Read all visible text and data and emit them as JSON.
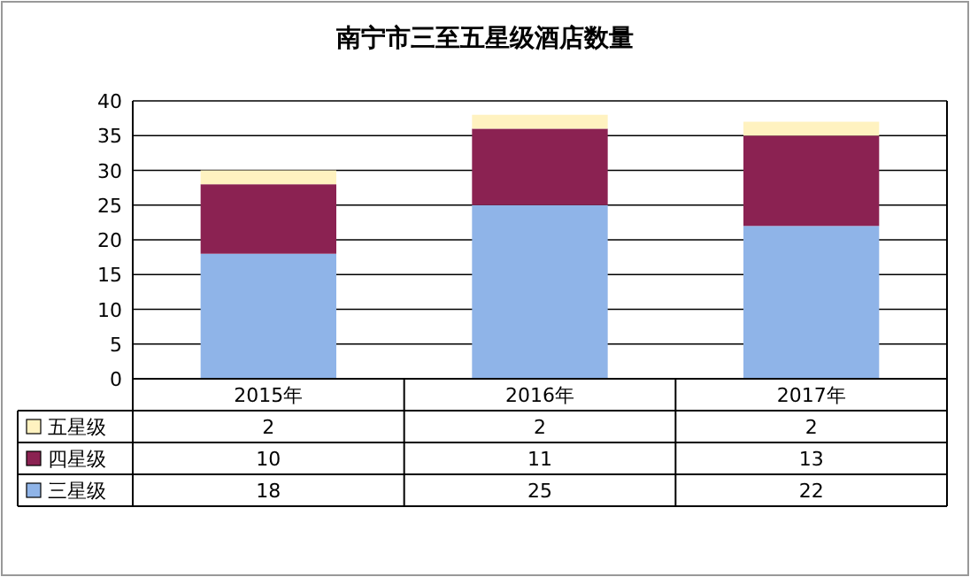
{
  "chart_data": {
    "type": "bar",
    "title": "南宁市三至五星级酒店数量",
    "stacked": true,
    "categories": [
      "2015年",
      "2016年",
      "2017年"
    ],
    "series": [
      {
        "name": "三星级",
        "color": "#8fb4e8",
        "values": [
          18,
          25,
          22
        ]
      },
      {
        "name": "四星级",
        "color": "#8b2252",
        "values": [
          10,
          11,
          13
        ]
      },
      {
        "name": "五星级",
        "color": "#fff2c0",
        "values": [
          2,
          2,
          2
        ]
      }
    ],
    "ylim": [
      0,
      40
    ],
    "yticks": [
      0,
      5,
      10,
      15,
      20,
      25,
      30,
      35,
      40
    ],
    "grid": "y",
    "legend": "bottom",
    "data_labels": true
  }
}
